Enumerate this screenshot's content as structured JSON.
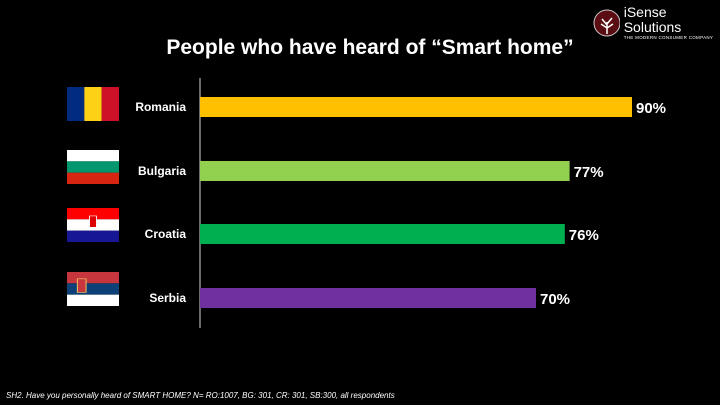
{
  "logo": {
    "name": "iSense Solutions",
    "tagline": "THE MODERN CONSUMER COMPANY"
  },
  "footnote": "SH2. Have you personally heard of SMART HOME? N= RO:1007, BG: 301, CR: 301, SB:300, all respondents",
  "chart_data": {
    "type": "bar",
    "orientation": "horizontal",
    "title": "People who have heard of “Smart home”",
    "categories": [
      "Romania",
      "Bulgaria",
      "Croatia",
      "Serbia"
    ],
    "values": [
      90,
      77,
      76,
      70
    ],
    "labels": [
      "90%",
      "77%",
      "76%",
      "70%"
    ],
    "colors": [
      "#FFC000",
      "#92D050",
      "#00B050",
      "#7030A0"
    ],
    "xlim": [
      0,
      100
    ],
    "grid": false,
    "unit": "%"
  }
}
